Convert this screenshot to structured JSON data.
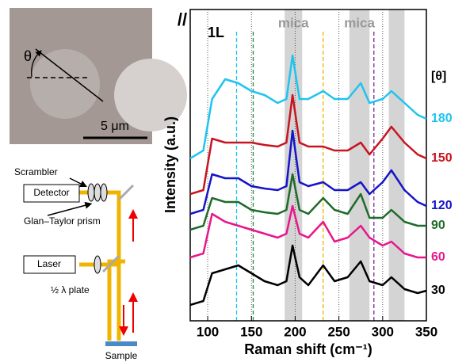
{
  "chart_data": {
    "type": "line",
    "polarization": "//",
    "sample_label": "1L",
    "xlabel": "Raman shift (cm⁻¹)",
    "ylabel": "Intensity (a.u.)",
    "legend_title": "[θ]",
    "x": [
      80,
      95,
      105,
      120,
      135,
      150,
      165,
      180,
      190,
      197,
      205,
      215,
      232,
      245,
      260,
      275,
      285,
      300,
      310,
      325,
      340,
      350
    ],
    "series": [
      {
        "name": "30",
        "color": "#000000",
        "values": [
          20,
          25,
          60,
          65,
          70,
          60,
          50,
          45,
          50,
          95,
          55,
          45,
          70,
          50,
          55,
          75,
          50,
          45,
          55,
          40,
          35,
          38
        ]
      },
      {
        "name": "60",
        "color": "#e8168c",
        "values": [
          80,
          85,
          135,
          125,
          120,
          115,
          110,
          105,
          110,
          145,
          110,
          105,
          125,
          100,
          105,
          120,
          105,
          95,
          100,
          85,
          80,
          80
        ]
      },
      {
        "name": "90",
        "color": "#1e6b2a",
        "values": [
          115,
          120,
          155,
          150,
          150,
          140,
          137,
          135,
          140,
          185,
          140,
          135,
          155,
          140,
          135,
          160,
          130,
          130,
          140,
          125,
          120,
          120
        ]
      },
      {
        "name": "120",
        "color": "#1414c8",
        "values": [
          135,
          140,
          185,
          180,
          180,
          170,
          167,
          165,
          170,
          240,
          175,
          170,
          175,
          165,
          165,
          175,
          160,
          175,
          190,
          165,
          150,
          145
        ]
      },
      {
        "name": "150",
        "color": "#c81420",
        "values": [
          160,
          165,
          230,
          225,
          225,
          225,
          222,
          220,
          225,
          285,
          225,
          220,
          220,
          215,
          215,
          225,
          210,
          230,
          245,
          225,
          210,
          205
        ]
      },
      {
        "name": "180",
        "color": "#1ec4f0",
        "values": [
          205,
          215,
          280,
          305,
          300,
          290,
          285,
          275,
          280,
          335,
          280,
          280,
          290,
          280,
          280,
          300,
          275,
          280,
          290,
          275,
          260,
          255
        ]
      }
    ],
    "bands": [
      {
        "range": [
          188,
          208
        ],
        "label": "mica"
      },
      {
        "range": [
          262,
          285
        ],
        "label": "mica"
      },
      {
        "range": [
          307,
          325
        ]
      }
    ],
    "markers": [
      {
        "x": 133,
        "color": "#1ec4f0"
      },
      {
        "x": 152,
        "color": "#1e8b3a"
      },
      {
        "x": 232,
        "color": "#f0b400"
      },
      {
        "x": 290,
        "color": "#7a2a9a"
      }
    ],
    "xlim": [
      80,
      350
    ],
    "xticks": [
      100,
      150,
      200,
      250,
      300,
      350
    ],
    "ylim": [
      0,
      393
    ],
    "grid": true
  },
  "inset": {
    "angle": "θ",
    "scale_bar": "5 μm"
  },
  "diagram": {
    "scrambler": "Scrambler",
    "detector": "Detector",
    "prism": "Glan–Taylor prism",
    "laser": "Laser",
    "plate": "½ λ plate",
    "sample": "Sample"
  }
}
